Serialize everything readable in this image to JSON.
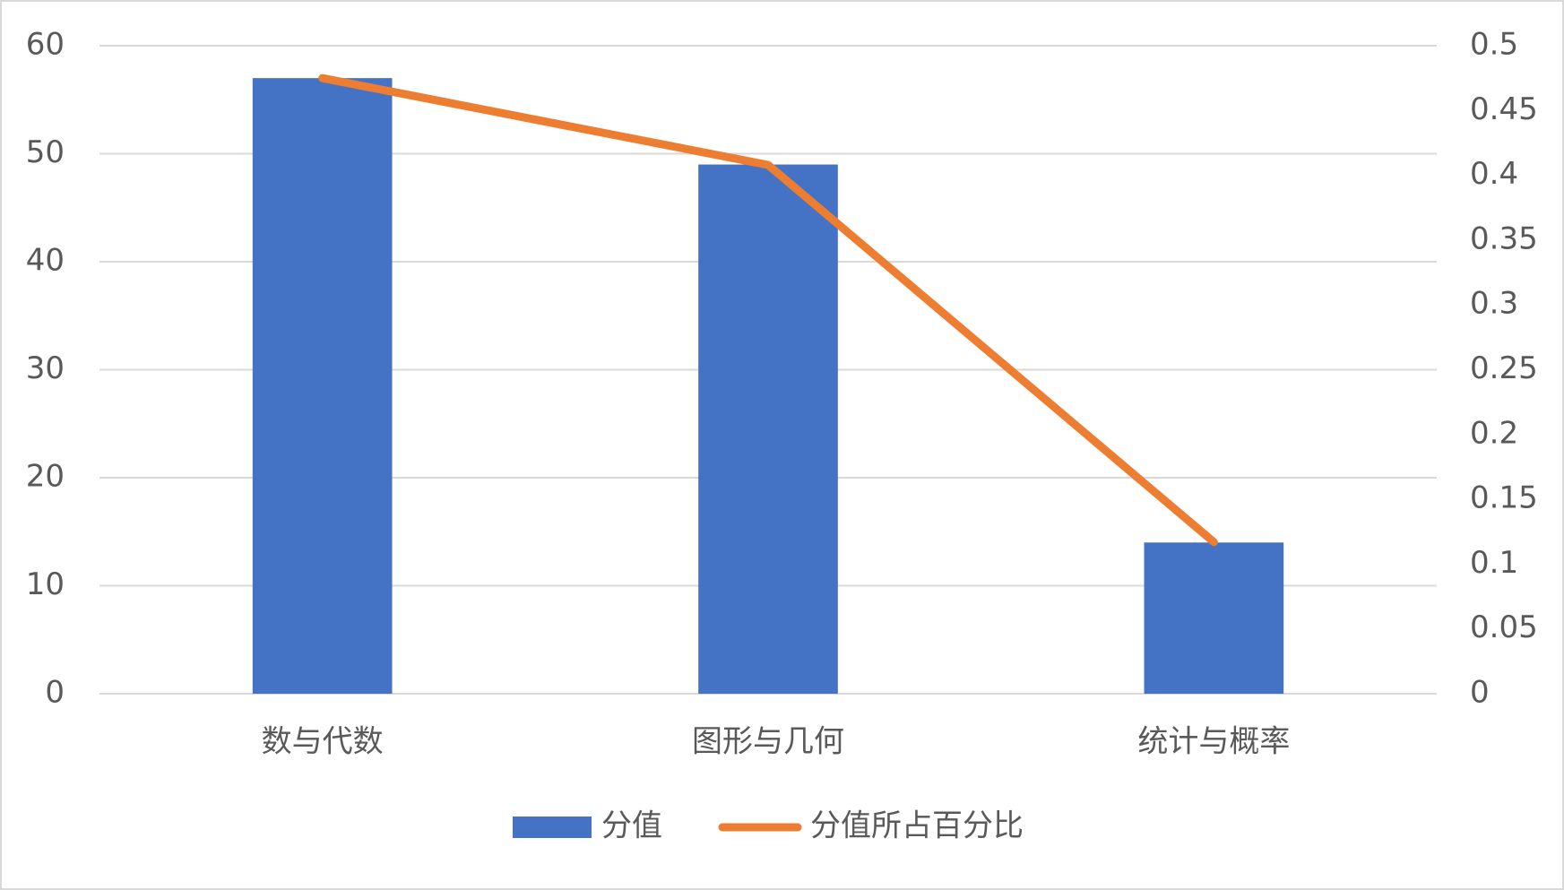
{
  "chart_data": {
    "type": "bar",
    "categories": [
      "数与代数",
      "图形与几何",
      "统计与概率"
    ],
    "series": [
      {
        "name": "分值",
        "color": "#4472c4",
        "values": [
          57,
          49,
          14
        ]
      },
      {
        "name": "分值所占百分比",
        "color": "#ed7d31",
        "values": [
          0.475,
          0.408,
          0.117
        ],
        "axis": "y2",
        "type": "line"
      }
    ],
    "ylim": [
      0,
      60
    ],
    "yticks": [
      0,
      10,
      20,
      30,
      40,
      50,
      60
    ],
    "y2lim": [
      0,
      0.5
    ],
    "y2ticks": [
      0,
      0.05,
      0.1,
      0.15,
      0.2,
      0.25,
      0.3,
      0.35,
      0.4,
      0.45,
      0.5
    ],
    "grid": true,
    "legend": "bottom"
  }
}
